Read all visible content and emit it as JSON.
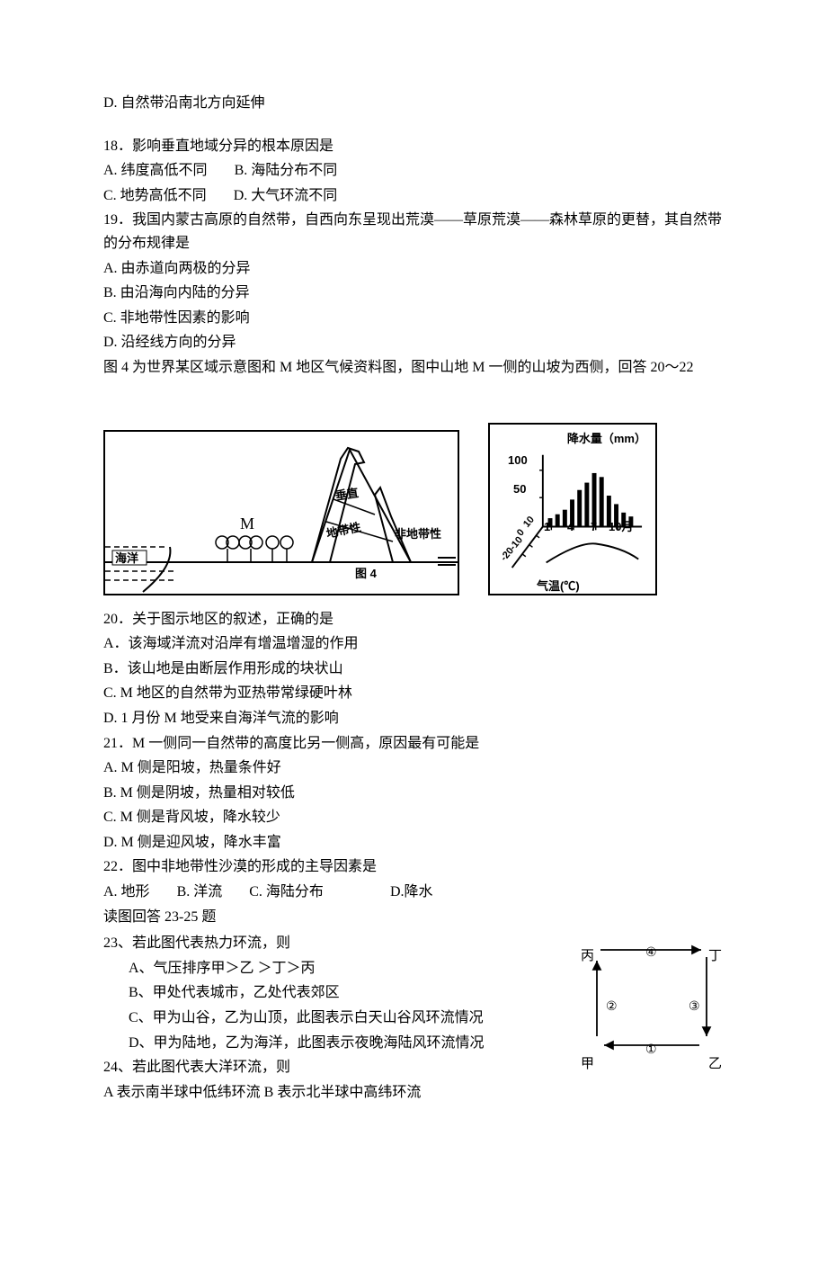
{
  "q17_optD": "D.  自然带沿南北方向延伸",
  "q18": {
    "stem": "18．影响垂直地域分异的根本原因是",
    "A": "A.  纬度高低不同",
    "B": "B.  海陆分布不同",
    "C": "C.  地势高低不同",
    "D": "D.  大气环流不同"
  },
  "q19": {
    "stem": "19．我国内蒙古高原的自然带，自西向东呈现出荒漠——草原荒漠——森林草原的更替，其自然带的分布规律是",
    "A": "A.  由赤道向两极的分异",
    "B": "B.  由沿海向内陆的分异",
    "C": "C.  非地带性因素的影响",
    "D": "D.  沿经线方向的分异"
  },
  "fig4_intro": "图 4 为世界某区域示意图和 M 地区气候资料图，图中山地 M 一侧的山坡为西侧，回答 20～22",
  "fig4_left": {
    "ocean_label": "海洋",
    "M_label": "M",
    "vertical_label": "垂直",
    "belt_label": "地带性",
    "nonzonal_label": "非地带性",
    "caption": "图 4"
  },
  "fig4_right": {
    "y_label": "降水量（mm）",
    "y_ticks": [
      "100",
      "50"
    ],
    "x_ticks": [
      "1",
      "4",
      "7",
      "10月"
    ],
    "temp_ticks": [
      "10",
      "0",
      "-10",
      "-20"
    ],
    "temp_axis": "气温(℃)",
    "bars": [
      15,
      22,
      30,
      48,
      65,
      78,
      95,
      88,
      55,
      40,
      25,
      18
    ]
  },
  "q20": {
    "stem": "20．关于图示地区的叙述，正确的是",
    "A": "A．该海域洋流对沿岸有增温增湿的作用",
    "B": "B．该山地是由断层作用形成的块状山",
    "C": "C. M 地区的自然带为亚热带常绿硬叶林",
    "D": "D. 1 月份 M 地受来自海洋气流的影响"
  },
  "q21": {
    "stem": "21．M 一侧同一自然带的高度比另一侧高，原因最有可能是",
    "A": "A. M 侧是阳坡，热量条件好",
    "B": "B. M 侧是阴坡，热量相对较低",
    "C": "C. M 侧是背风坡，降水较少",
    "D": "D. M 侧是迎风坡，降水丰富"
  },
  "q22": {
    "stem": "22．图中非地带性沙漠的形成的主导因素是",
    "A": "A.  地形",
    "B": "B.  洋流",
    "C": "C.  海陆分布",
    "D": "D.降水"
  },
  "q23_intro": "读图回答 23-25 题",
  "q23": {
    "stem": "23、若此图代表热力环流，则",
    "A": "A、气压排序甲＞乙 ＞丁＞丙",
    "B": "B、甲处代表城市，乙处代表郊区",
    "C": "C、甲为山谷，乙为山顶，此图表示白天山谷风环流情况",
    "D": "D、甲为陆地，乙为海洋，此图表示夜晚海陆风环流情况"
  },
  "q24": {
    "stem": "24、若此图代表大洋环流，则",
    "line1": "A 表示南半球中低纬环流 B 表示北半球中高纬环流"
  },
  "circ_diagram": {
    "nodes": {
      "tl": "丙",
      "tr": "丁",
      "bl": "甲",
      "br": "乙"
    },
    "edges": {
      "top": "④",
      "left": "②",
      "right": "③",
      "bottom": "①"
    }
  },
  "colors": {
    "text": "#000000",
    "bg": "#ffffff",
    "stroke": "#000000"
  }
}
